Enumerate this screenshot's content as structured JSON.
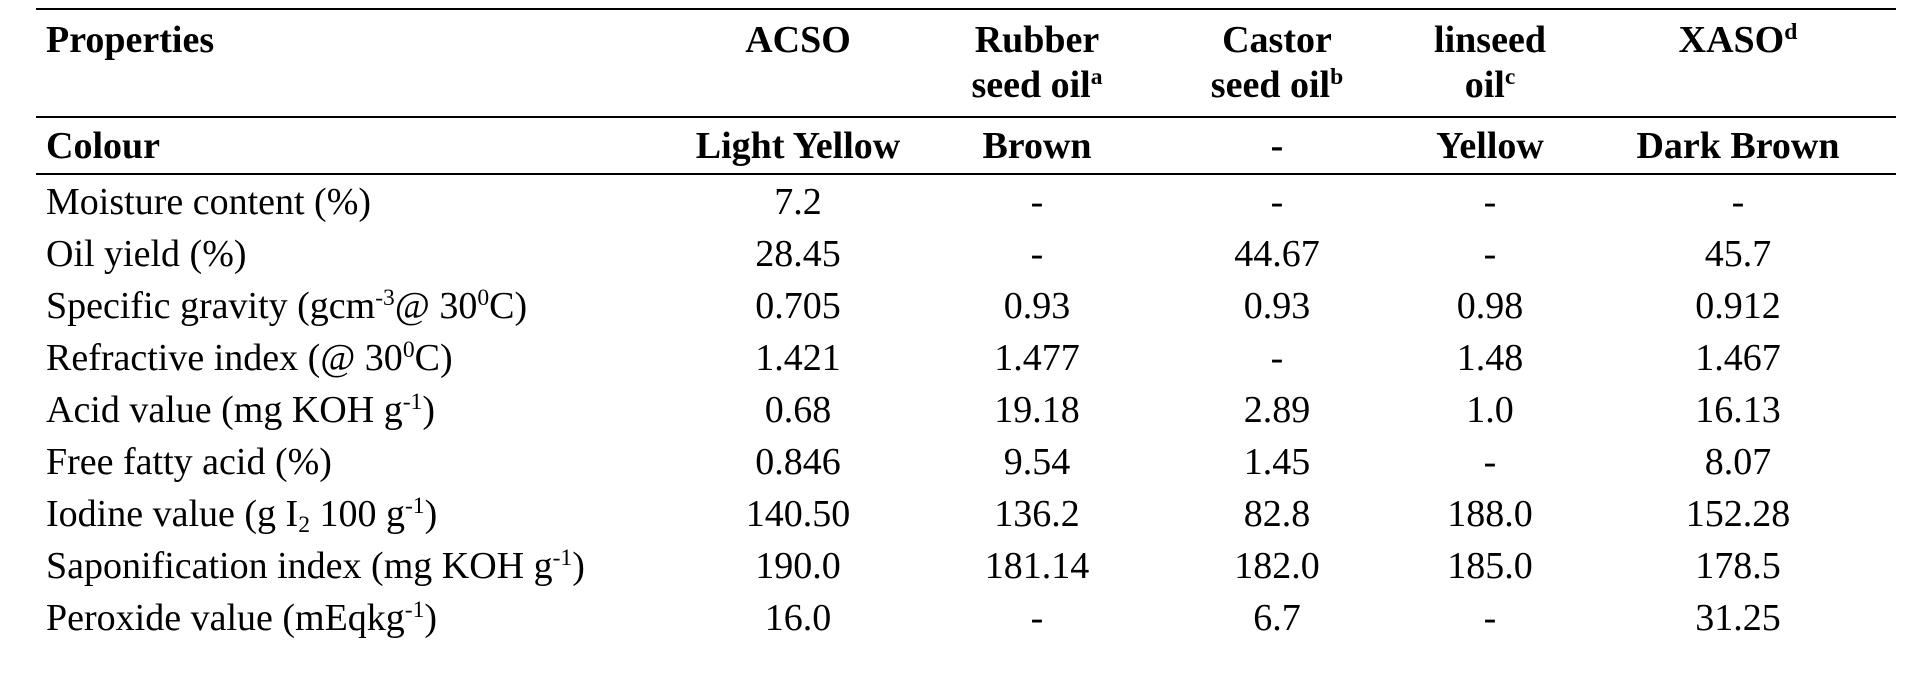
{
  "table": {
    "header": {
      "properties": "Properties",
      "acso": "ACSO",
      "rubber_l1": "Rubber",
      "rubber_l2": "seed oil",
      "rubber_sup": "a",
      "castor_l1": "Castor",
      "castor_l2": "seed oil",
      "castor_sup": "b",
      "linseed_l1": "linseed",
      "linseed_l2": "oil",
      "linseed_sup": "c",
      "xaso": "XASO",
      "xaso_sup": "d"
    },
    "colour_row": {
      "label": "Colour",
      "values": [
        "Light Yellow",
        "Brown",
        "-",
        "Yellow",
        "Dark Brown"
      ]
    },
    "rows": [
      {
        "label_a": "Moisture content (%)",
        "values": [
          "7.2",
          "-",
          "-",
          "-",
          "-"
        ]
      },
      {
        "label_a": "Oil yield (%)",
        "values": [
          "28.45",
          "-",
          "44.67",
          "-",
          "45.7"
        ]
      },
      {
        "label_a": "Specific gravity (gcm",
        "sup1": "-3",
        "label_b": "@ 30",
        "sup2": "0",
        "label_c": "C)",
        "values": [
          "0.705",
          "0.93",
          "0.93",
          "0.98",
          "0.912"
        ]
      },
      {
        "label_a": "Refractive index (@ 30",
        "sup1": "0",
        "label_b": "C)",
        "values": [
          "1.421",
          "1.477",
          "-",
          "1.48",
          "1.467"
        ]
      },
      {
        "label_a": "Acid value (mg KOH g",
        "sup1": "-1",
        "label_b": ")",
        "values": [
          "0.68",
          "19.18",
          "2.89",
          "1.0",
          "16.13"
        ]
      },
      {
        "label_a": "Free fatty acid (%)",
        "values": [
          "0.846",
          "9.54",
          "1.45",
          "-",
          "8.07"
        ]
      },
      {
        "label_a": "Iodine value (g I",
        "sub1": "2",
        "label_b": " 100 g",
        "sup1": "-1",
        "label_c": ")",
        "values": [
          "140.50",
          "136.2",
          "82.8",
          "188.0",
          "152.28"
        ]
      },
      {
        "label_a": "Saponification index (mg KOH g",
        "sup1": "-1",
        "label_b": ")",
        "values": [
          "190.0",
          "181.14",
          "182.0",
          "185.0",
          "178.5"
        ]
      },
      {
        "label_a": "Peroxide value (mEqkg",
        "sup1": "-1",
        "label_b": ")",
        "values": [
          "16.0",
          "-",
          "6.7",
          "-",
          "31.25"
        ]
      }
    ]
  }
}
